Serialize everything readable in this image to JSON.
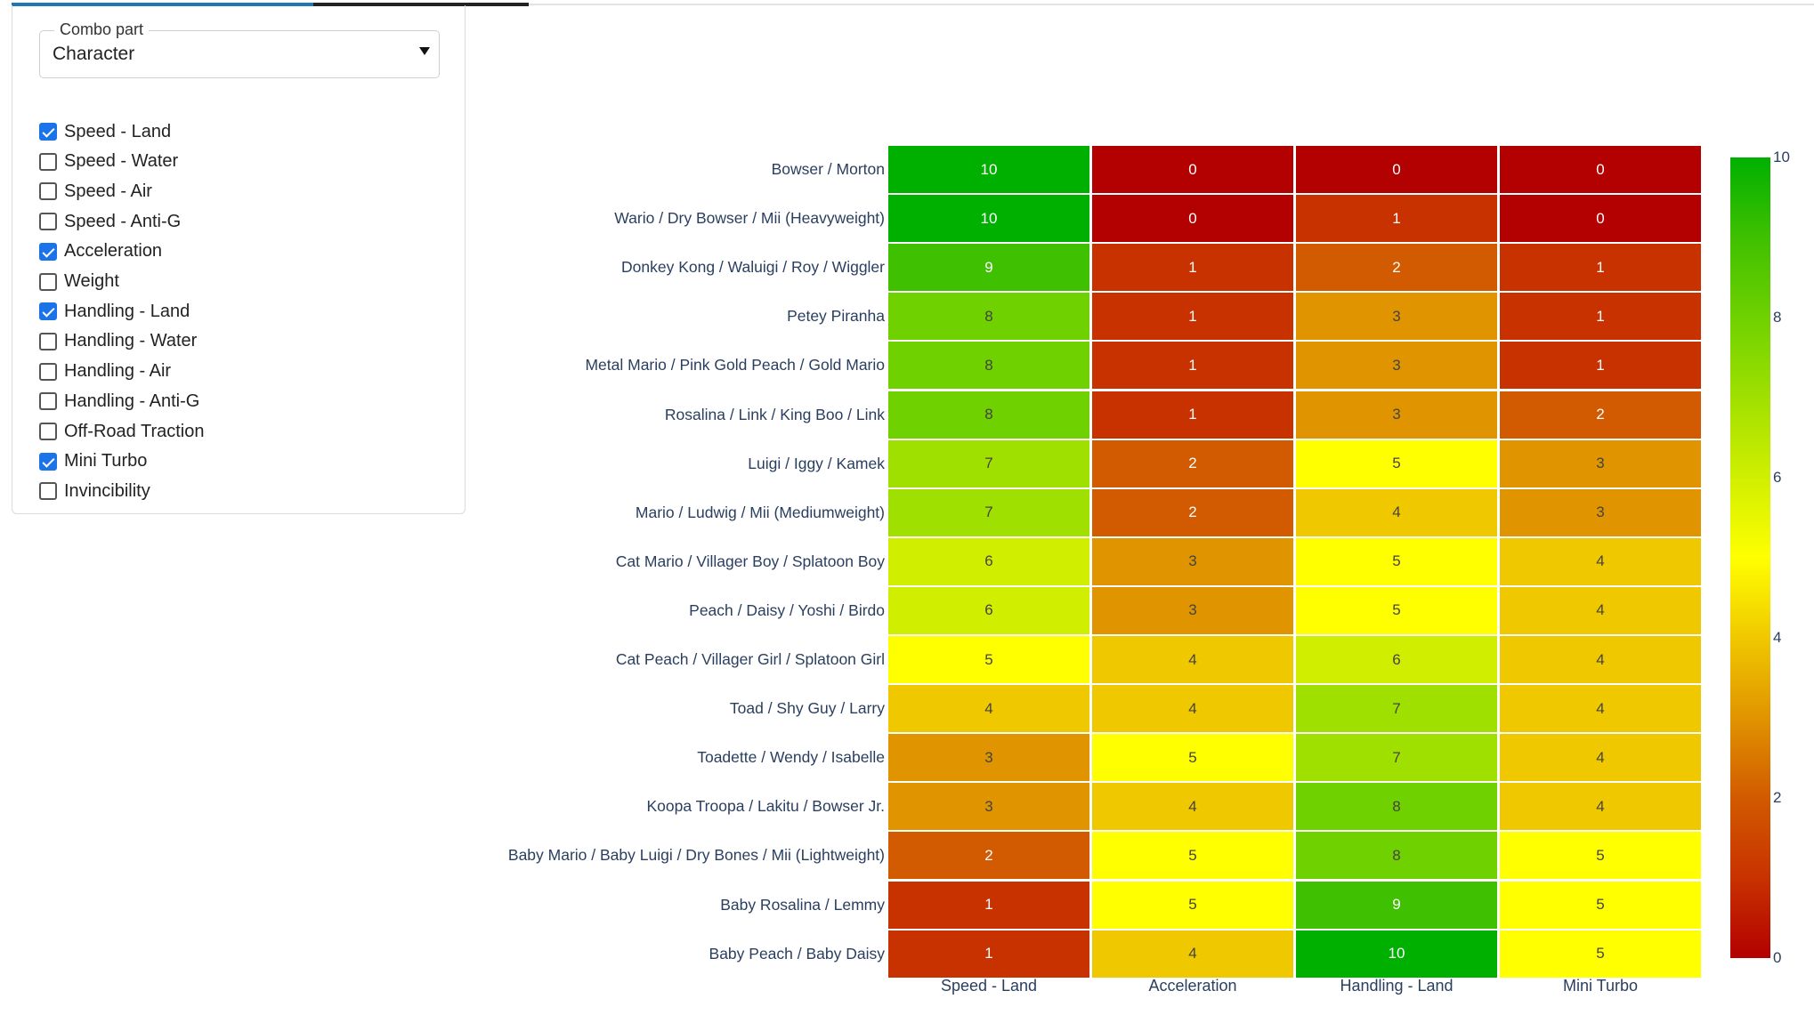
{
  "selector": {
    "legend": "Combo part",
    "value": "Character"
  },
  "checklist": [
    {
      "label": "Speed - Land",
      "checked": true
    },
    {
      "label": "Speed - Water",
      "checked": false
    },
    {
      "label": "Speed - Air",
      "checked": false
    },
    {
      "label": "Speed - Anti-G",
      "checked": false
    },
    {
      "label": "Acceleration",
      "checked": true
    },
    {
      "label": "Weight",
      "checked": false
    },
    {
      "label": "Handling - Land",
      "checked": true
    },
    {
      "label": "Handling - Water",
      "checked": false
    },
    {
      "label": "Handling - Air",
      "checked": false
    },
    {
      "label": "Handling - Anti-G",
      "checked": false
    },
    {
      "label": "Off-Road Traction",
      "checked": false
    },
    {
      "label": "Mini Turbo",
      "checked": true
    },
    {
      "label": "Invincibility",
      "checked": false
    }
  ],
  "chart_data": {
    "type": "heatmap",
    "columns": [
      "Speed - Land",
      "Acceleration",
      "Handling - Land",
      "Mini Turbo"
    ],
    "rows": [
      "Bowser / Morton",
      "Wario / Dry Bowser / Mii (Heavyweight)",
      "Donkey Kong / Waluigi / Roy / Wiggler",
      "Petey Piranha",
      "Metal Mario / Pink Gold Peach / Gold Mario",
      "Rosalina / Link / King Boo / Link",
      "Luigi / Iggy / Kamek",
      "Mario / Ludwig / Mii (Mediumweight)",
      "Cat Mario / Villager Boy / Splatoon Boy",
      "Peach / Daisy / Yoshi / Birdo",
      "Cat Peach / Villager Girl / Splatoon Girl",
      "Toad / Shy Guy / Larry",
      "Toadette / Wendy / Isabelle",
      "Koopa Troopa / Lakitu / Bowser Jr.",
      "Baby Mario / Baby Luigi / Dry Bones / Mii (Lightweight)",
      "Baby Rosalina / Lemmy",
      "Baby Peach / Baby Daisy"
    ],
    "values": [
      [
        10,
        0,
        0,
        0
      ],
      [
        10,
        0,
        1,
        0
      ],
      [
        9,
        1,
        2,
        1
      ],
      [
        8,
        1,
        3,
        1
      ],
      [
        8,
        1,
        3,
        1
      ],
      [
        8,
        1,
        3,
        2
      ],
      [
        7,
        2,
        5,
        3
      ],
      [
        7,
        2,
        4,
        3
      ],
      [
        6,
        3,
        5,
        4
      ],
      [
        6,
        3,
        5,
        4
      ],
      [
        5,
        4,
        6,
        4
      ],
      [
        4,
        4,
        7,
        4
      ],
      [
        3,
        5,
        7,
        4
      ],
      [
        3,
        4,
        8,
        4
      ],
      [
        2,
        5,
        8,
        5
      ],
      [
        1,
        5,
        9,
        5
      ],
      [
        1,
        4,
        10,
        5
      ]
    ],
    "zlim": [
      0,
      10
    ],
    "colorbar_ticks": [
      "0",
      "2",
      "4",
      "6",
      "8",
      "10"
    ],
    "colorscale": [
      "#b30000",
      "#c83200",
      "#d25a00",
      "#e09400",
      "#f0c800",
      "#ffff00",
      "#d0ef00",
      "#a0e000",
      "#6fd100",
      "#3fc000",
      "#00b000"
    ]
  }
}
